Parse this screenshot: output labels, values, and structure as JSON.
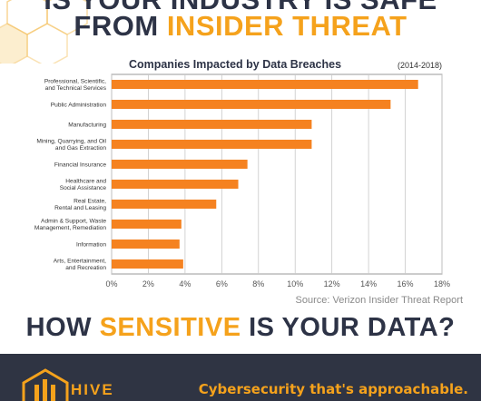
{
  "header": {
    "line1": "IS YOUR INDUSTRY IS SAFE",
    "line2_dark": "FROM",
    "line2_accent": "INSIDER THREAT"
  },
  "chart_data": {
    "type": "bar",
    "orientation": "horizontal",
    "title": "Companies Impacted by Data Breaches",
    "subtitle": "(2014-2018)",
    "categories": [
      "Professional, Scientific,\nand Technical Services",
      "Public Administration",
      "Manufacturing",
      "Mining, Quarrying, and Oil\nand Gas Extraction",
      "Financial Insurance",
      "Healthcare and\nSocial Assistance",
      "Real Estate,\nRental and Leasing",
      "Admin & Support, Waste\nManagement, Remediation",
      "Information",
      "Arts, Entertainment,\nand Recreation"
    ],
    "values": [
      16.7,
      15.2,
      10.9,
      10.9,
      7.4,
      6.9,
      5.7,
      3.8,
      3.7,
      3.9
    ],
    "xlim": [
      0,
      18
    ],
    "xticks": [
      "0%",
      "2%",
      "4%",
      "6%",
      "8%",
      "10%",
      "12%",
      "14%",
      "16%",
      "18%"
    ],
    "grid": true,
    "bar_color": "#f58220",
    "source": "Source: Verizon Insider Threat Report"
  },
  "bottom": {
    "part1": "HOW",
    "part2": "SENSITIVE",
    "part3": "IS YOUR DATA?"
  },
  "footer": {
    "brand": "HIVE",
    "tagline": "Cybersecurity that's approachable."
  },
  "colors": {
    "accent": "#f5a21c",
    "dark": "#2d3346",
    "footer_bg": "#2f3443"
  }
}
